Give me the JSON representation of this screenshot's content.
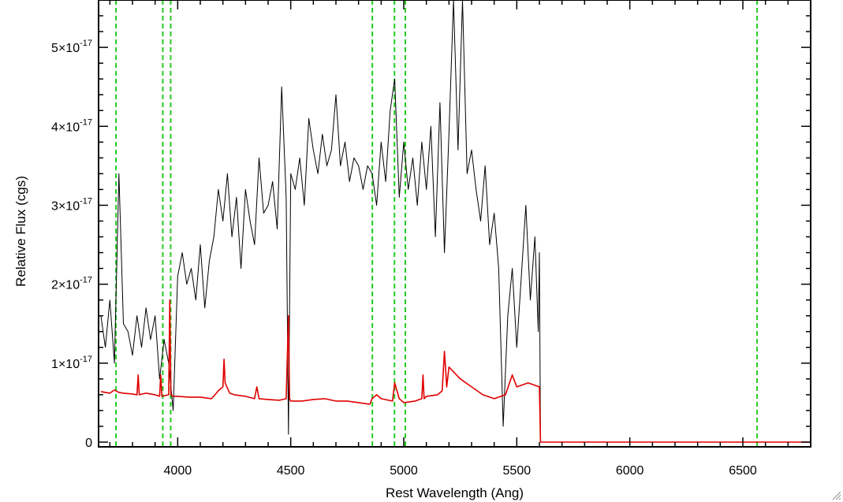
{
  "chart_data": {
    "type": "line",
    "title": "",
    "xlabel": "Rest Wavelength (Ang)",
    "ylabel": "Relative Flux (cgs)",
    "xlim": [
      3650,
      6800
    ],
    "ylim": [
      -6e-19,
      5.6e-17
    ],
    "x_ticks": [
      {
        "value": 4000,
        "label": "4000"
      },
      {
        "value": 4500,
        "label": "4500"
      },
      {
        "value": 5000,
        "label": "5000"
      },
      {
        "value": 5500,
        "label": "5500"
      },
      {
        "value": 6000,
        "label": "6000"
      },
      {
        "value": 6500,
        "label": "6500"
      }
    ],
    "y_ticks": [
      {
        "value": 0,
        "label": "0"
      },
      {
        "value": 1e-17,
        "mantissa": "1×10",
        "exponent": "-17"
      },
      {
        "value": 2e-17,
        "mantissa": "2×10",
        "exponent": "-17"
      },
      {
        "value": 3e-17,
        "mantissa": "3×10",
        "exponent": "-17"
      },
      {
        "value": 4e-17,
        "mantissa": "4×10",
        "exponent": "-17"
      },
      {
        "value": 5e-17,
        "mantissa": "5×10",
        "exponent": "-17"
      }
    ],
    "x_minor_step": 100,
    "y_minor_step": 2e-18,
    "grid": false,
    "legend": "none",
    "series": [
      {
        "color": "#000000",
        "style": "solid",
        "x": [
          3660,
          3680,
          3700,
          3720,
          3740,
          3760,
          3780,
          3800,
          3820,
          3840,
          3860,
          3880,
          3900,
          3920,
          3940,
          3960,
          3980,
          4000,
          4020,
          4040,
          4060,
          4080,
          4100,
          4120,
          4140,
          4160,
          4180,
          4200,
          4220,
          4240,
          4260,
          4280,
          4300,
          4320,
          4340,
          4360,
          4380,
          4400,
          4420,
          4440,
          4460,
          4480,
          4490,
          4500,
          4520,
          4540,
          4560,
          4580,
          4600,
          4620,
          4640,
          4660,
          4680,
          4700,
          4720,
          4740,
          4760,
          4780,
          4800,
          4820,
          4840,
          4860,
          4880,
          4900,
          4920,
          4940,
          4960,
          4980,
          5000,
          5020,
          5040,
          5060,
          5080,
          5100,
          5120,
          5140,
          5160,
          5180,
          5200,
          5220,
          5240,
          5260,
          5280,
          5300,
          5320,
          5340,
          5360,
          5380,
          5400,
          5420,
          5440,
          5460,
          5480,
          5500,
          5520,
          5540,
          5560,
          5580,
          5595,
          5600,
          5605,
          5620,
          5800,
          6000,
          6200,
          6400,
          6600,
          6800
        ],
        "y": [
          1.6e-17,
          1.2e-17,
          1.8e-17,
          1e-17,
          3.4e-17,
          1.5e-17,
          1.4e-17,
          1.1e-17,
          1.6e-17,
          1.2e-17,
          1.7e-17,
          1.3e-17,
          1.6e-17,
          8e-18,
          1.3e-17,
          1e-17,
          4e-18,
          2.1e-17,
          2.4e-17,
          2e-17,
          2.2e-17,
          1.8e-17,
          2.5e-17,
          1.7e-17,
          2.3e-17,
          2.6e-17,
          3.2e-17,
          2.8e-17,
          3.4e-17,
          2.6e-17,
          3.1e-17,
          2.2e-17,
          3.2e-17,
          2.8e-17,
          2.5e-17,
          3.6e-17,
          2.9e-17,
          3e-17,
          3.3e-17,
          2.7e-17,
          4.5e-17,
          3.1e-17,
          1e-18,
          3.4e-17,
          3.2e-17,
          3.6e-17,
          3e-17,
          4.1e-17,
          3.7e-17,
          3.4e-17,
          3.9e-17,
          3.5e-17,
          3.7e-17,
          4.4e-17,
          3.5e-17,
          3.8e-17,
          3.3e-17,
          3.6e-17,
          3.5e-17,
          3.2e-17,
          3.5e-17,
          3.4e-17,
          3e-17,
          3.8e-17,
          3.3e-17,
          4.2e-17,
          4.6e-17,
          3.1e-17,
          3.8e-17,
          3.2e-17,
          3.6e-17,
          3e-17,
          3.8e-17,
          3.2e-17,
          4e-17,
          2.6e-17,
          4.3e-17,
          2.4e-17,
          3.9e-17,
          5.6e-17,
          3.7e-17,
          5.6e-17,
          3.4e-17,
          3.7e-17,
          3.2e-17,
          2.8e-17,
          3.5e-17,
          2.5e-17,
          2.9e-17,
          2.2e-17,
          2e-18,
          1.6e-17,
          2.2e-17,
          1.2e-17,
          2.1e-17,
          3e-17,
          1.8e-17,
          2.6e-17,
          1.4e-17,
          2.4e-17,
          0.0,
          0.0,
          0.0,
          0.0,
          0.0,
          0.0,
          0.0,
          0.0
        ]
      },
      {
        "color": "#e00000",
        "style": "solid",
        "x": [
          3660,
          3700,
          3720,
          3740,
          3760,
          3800,
          3820,
          3825,
          3830,
          3860,
          3900,
          3920,
          3925,
          3930,
          3960,
          3965,
          3970,
          3980,
          4000,
          4050,
          4100,
          4150,
          4180,
          4200,
          4205,
          4210,
          4230,
          4250,
          4300,
          4340,
          4350,
          4360,
          4400,
          4450,
          4480,
          4490,
          4495,
          4500,
          4550,
          4600,
          4650,
          4700,
          4750,
          4800,
          4850,
          4860,
          4880,
          4900,
          4950,
          4960,
          4980,
          5000,
          5050,
          5080,
          5085,
          5090,
          5100,
          5150,
          5170,
          5180,
          5190,
          5200,
          5250,
          5300,
          5350,
          5400,
          5450,
          5480,
          5500,
          5550,
          5580,
          5600,
          5605,
          5800,
          6000,
          6200,
          6400,
          6600,
          6800
        ],
        "y": [
          6.4e-18,
          6.2e-18,
          6.6e-18,
          6.3e-18,
          6.2e-18,
          6.1e-18,
          6e-18,
          8.5e-18,
          6e-18,
          6.2e-18,
          6e-18,
          5.8e-18,
          8.5e-18,
          5.8e-18,
          6e-18,
          1.8e-17,
          6e-18,
          5.8e-18,
          5.8e-18,
          5.7e-18,
          5.7e-18,
          5.5e-18,
          6.5e-18,
          7e-18,
          1.05e-17,
          7.5e-18,
          6.2e-18,
          6e-18,
          5.8e-18,
          5.5e-18,
          7e-18,
          5.5e-18,
          5.4e-18,
          5.3e-18,
          5.5e-18,
          1.6e-17,
          5.5e-18,
          5.2e-18,
          5.2e-18,
          5.4e-18,
          5.5e-18,
          5.2e-18,
          5.2e-18,
          5e-18,
          4.8e-18,
          5.5e-18,
          6e-18,
          5.5e-18,
          5.2e-18,
          7.5e-18,
          5.5e-18,
          5e-18,
          5.2e-18,
          5.5e-18,
          8.5e-18,
          5.5e-18,
          5.8e-18,
          6e-18,
          6.5e-18,
          1.15e-17,
          7e-18,
          9.5e-18,
          8e-18,
          7e-18,
          6e-18,
          5.5e-18,
          6e-18,
          8.5e-18,
          7e-18,
          7.5e-18,
          7.2e-18,
          7e-18,
          0.0,
          0.0,
          0.0,
          0.0,
          0.0,
          0.0,
          0.0
        ]
      }
    ],
    "vertical_lines": {
      "color": "#22cc22",
      "style": "dashed",
      "x": [
        3727,
        3934,
        3969,
        4861,
        4959,
        5007,
        6563
      ]
    }
  },
  "ui": {
    "resize_grip_icon": "resize-grip-icon"
  }
}
